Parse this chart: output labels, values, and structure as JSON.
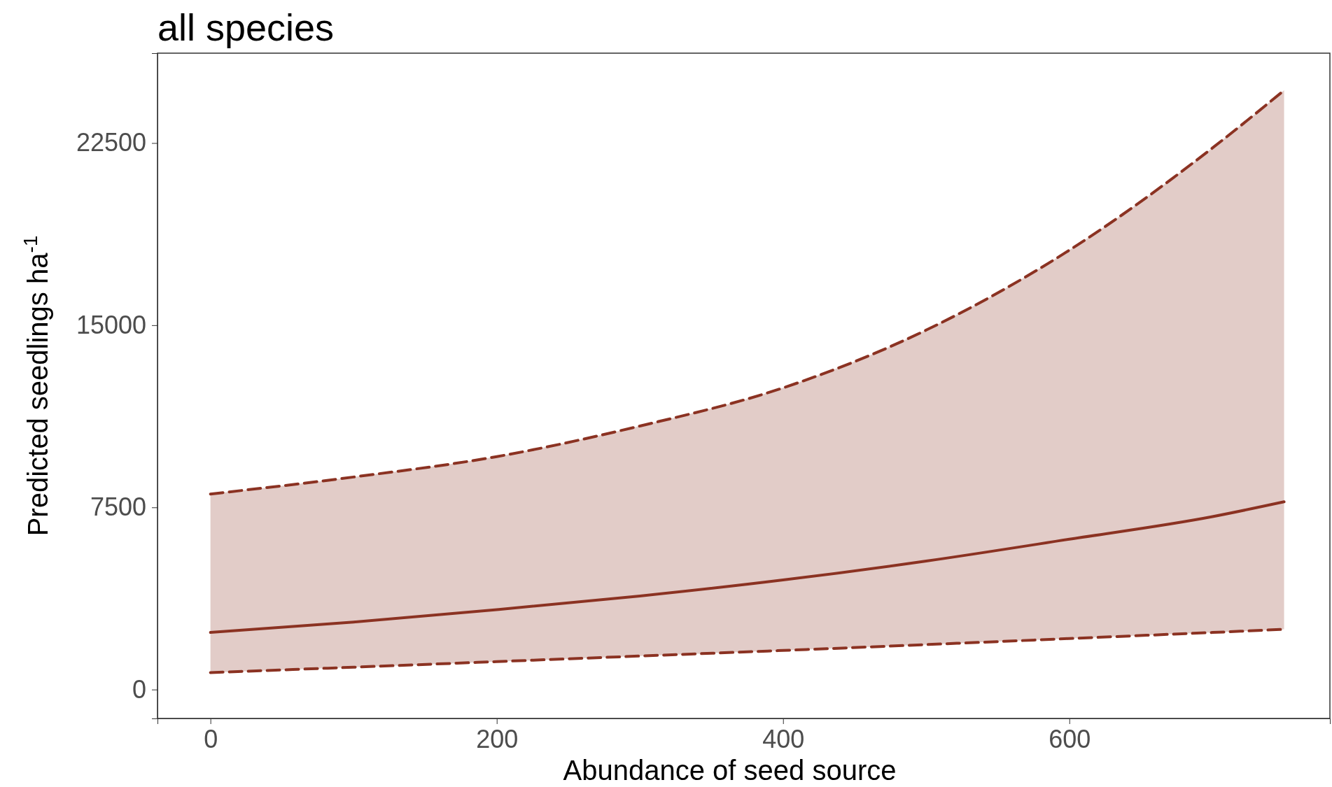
{
  "chart_data": {
    "type": "line",
    "title": "all species",
    "xlabel": "Abundance of seed source",
    "ylabel": "Predicted seedlings ha$^{-1}$",
    "x": [
      0,
      100,
      200,
      300,
      400,
      500,
      600,
      700,
      750
    ],
    "series": [
      {
        "color": "#8b3222",
        "values": [
          2350,
          2780,
          3290,
          3850,
          4510,
          5290,
          6190,
          7120,
          7730
        ],
        "lower": [
          700,
          920,
          1150,
          1380,
          1610,
          1850,
          2100,
          2350,
          2480
        ],
        "upper": [
          8050,
          8750,
          9590,
          10850,
          12420,
          14800,
          18090,
          22300,
          24670
        ]
      },
      {
        "color": "#8b3222",
        "line_style": "dashed",
        "values": [
          700,
          920,
          1150,
          1380,
          1610,
          1850,
          2100,
          2350,
          2480
        ]
      },
      {
        "color": "#8b3222",
        "line_style": "dashed",
        "values": [
          8050,
          8750,
          9590,
          10850,
          12420,
          14800,
          18090,
          22300,
          24670
        ]
      }
    ],
    "xlim": [
      -37,
      782
    ],
    "ylim": [
      -1190,
      26200
    ],
    "xticks": [
      0,
      200,
      400,
      600
    ],
    "yticks": [
      0,
      7500,
      15000,
      22500
    ],
    "grid": false,
    "marker": "none",
    "line_style": "solid"
  }
}
